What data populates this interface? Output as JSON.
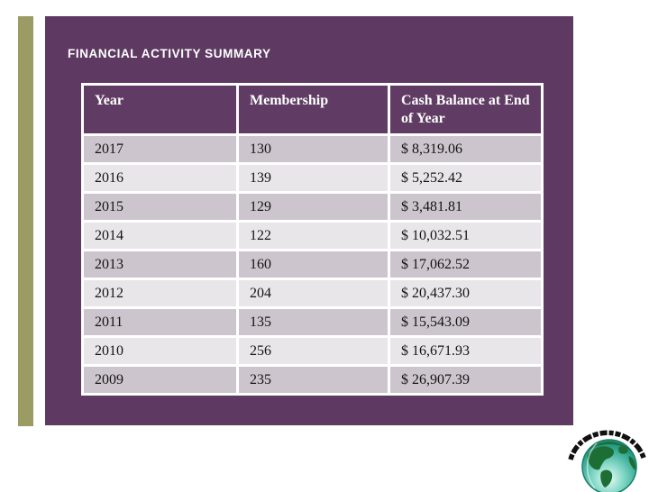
{
  "slide": {
    "title": "FINANCIAL ACTIVITY SUMMARY",
    "panel_color": "#5e3a63",
    "stripe_color": "#9b9b64",
    "background_color": "#ffffff",
    "title_color": "#ffffff"
  },
  "table": {
    "columns": [
      "Year",
      "Membership",
      "Cash Balance at End of Year"
    ],
    "rows": [
      [
        "2017",
        "130",
        "$ 8,319.06"
      ],
      [
        "2016",
        "139",
        "$ 5,252.42"
      ],
      [
        "2015",
        "129",
        "$ 3,481.81"
      ],
      [
        "2014",
        "122",
        "$ 10,032.51"
      ],
      [
        "2013",
        "160",
        "$ 17,062.52"
      ],
      [
        "2012",
        "204",
        "$ 20,437.30"
      ],
      [
        "2011",
        "135",
        "$ 15,543.09"
      ],
      [
        "2010",
        "256",
        "$ 16,671.93"
      ],
      [
        "2009",
        "235",
        "$ 26,907.39"
      ]
    ],
    "header_bg": "#603c64",
    "header_text_color": "#ffffff",
    "row_bg_odd": "#cdc5cd",
    "row_bg_even": "#e9e6ea",
    "border_color": "#ffffff"
  },
  "chart_data": {
    "type": "table",
    "title": "FINANCIAL ACTIVITY SUMMARY",
    "categories": [
      "2017",
      "2016",
      "2015",
      "2014",
      "2013",
      "2012",
      "2011",
      "2010",
      "2009"
    ],
    "series": [
      {
        "name": "Membership",
        "values": [
          130,
          139,
          129,
          122,
          160,
          204,
          135,
          256,
          235
        ]
      },
      {
        "name": "Cash Balance at End of Year",
        "values": [
          8319.06,
          5252.42,
          3481.81,
          10032.51,
          17062.52,
          20437.3,
          15543.09,
          16671.93,
          26907.39
        ]
      }
    ]
  },
  "logo": {
    "globe_ocean_color": "#2aa18d",
    "continent_color": "#1d6e35",
    "arc_color": "#111111"
  }
}
